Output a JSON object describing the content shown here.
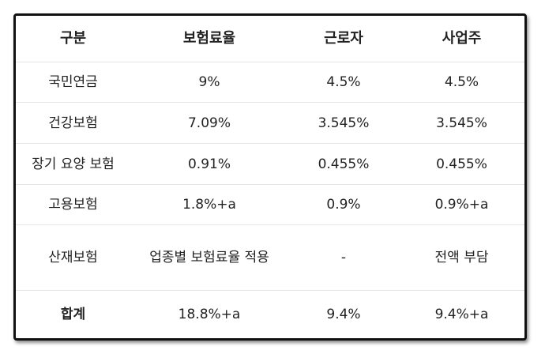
{
  "table": {
    "headers": [
      "구분",
      "보험료율",
      "근로자",
      "사업주"
    ],
    "rows": [
      [
        "국민연금",
        "9%",
        "4.5%",
        "4.5%"
      ],
      [
        "건강보험",
        "7.09%",
        "3.545%",
        "3.545%"
      ],
      [
        "장기 요양 보험",
        "0.91%",
        "0.455%",
        "0.455%"
      ],
      [
        "고용보험",
        "1.8%+a",
        "0.9%",
        "0.9%+a"
      ],
      [
        "산재보험",
        "업종별 보험료율 적용",
        "-",
        "전액 부담"
      ],
      [
        "합계",
        "18.8%+a",
        "9.4%",
        "9.4%+a"
      ]
    ]
  }
}
